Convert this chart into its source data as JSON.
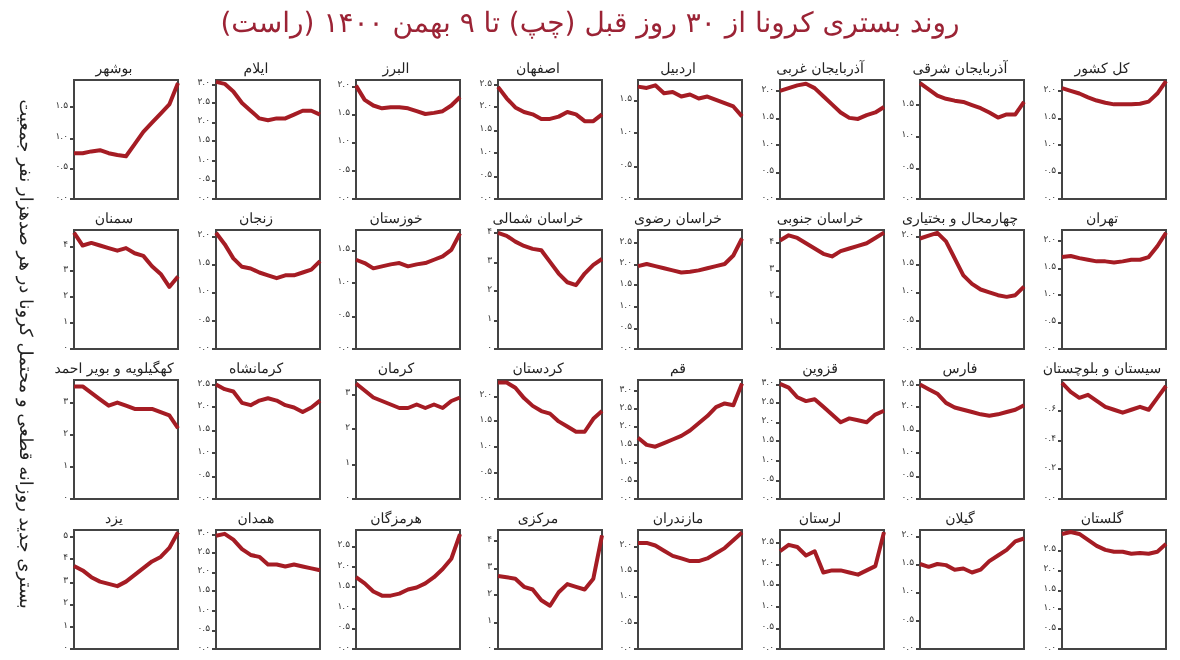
{
  "chart_data": [
    {
      "type": "other",
      "title": "روند بستری کرونا از ۳۰ روز قبل (چپ) تا ۹ بهمن ۱۴۰۰ (راست)",
      "annotations": [
        "بستری جدید روزانه قطعی و محتمل کرونا در هر صدهزار نفر جمعیت"
      ]
    },
    {
      "type": "line",
      "title": "کل کشور",
      "categories": [
        null,
        null,
        null,
        null,
        null,
        null,
        null,
        null,
        null,
        null,
        null,
        null,
        null
      ],
      "values": [
        2.05,
        2.0,
        1.95,
        1.88,
        1.82,
        1.78,
        1.75,
        1.75,
        1.75,
        1.76,
        1.8,
        1.95,
        2.18
      ],
      "color": "#a51c24",
      "tick_labels": "y",
      "ylim": [
        0,
        2.2
      ],
      "yticks": [
        {
          "value": 0,
          "label": "۰.۰"
        },
        {
          "value": 0.5,
          "label": "۰.۵"
        },
        {
          "value": 1,
          "label": "۱.۰"
        },
        {
          "value": 1.5,
          "label": "۱.۵"
        },
        {
          "value": 2,
          "label": "۲.۰"
        }
      ]
    },
    {
      "type": "line",
      "title": "آذربایجان شرقی",
      "categories": [
        null,
        null,
        null,
        null,
        null,
        null,
        null,
        null,
        null,
        null,
        null,
        null,
        null
      ],
      "values": [
        1.85,
        1.75,
        1.65,
        1.6,
        1.57,
        1.55,
        1.5,
        1.45,
        1.38,
        1.3,
        1.35,
        1.35,
        1.55
      ],
      "color": "#a51c24",
      "tick_labels": "y",
      "ylim": [
        0,
        1.9
      ],
      "yticks": [
        {
          "value": 0,
          "label": "۰.۰"
        },
        {
          "value": 0.5,
          "label": "۰.۵"
        },
        {
          "value": 1,
          "label": "۱.۰"
        },
        {
          "value": 1.5,
          "label": "۱.۵"
        }
      ]
    },
    {
      "type": "line",
      "title": "آذربایجان غربی",
      "categories": [
        null,
        null,
        null,
        null,
        null,
        null,
        null,
        null,
        null,
        null,
        null,
        null,
        null
      ],
      "values": [
        2.0,
        2.05,
        2.1,
        2.13,
        2.05,
        1.9,
        1.75,
        1.6,
        1.5,
        1.48,
        1.55,
        1.6,
        1.7
      ],
      "color": "#a51c24",
      "tick_labels": "y",
      "ylim": [
        0,
        2.2
      ],
      "yticks": [
        {
          "value": 0,
          "label": "۰.۰"
        },
        {
          "value": 0.5,
          "label": "۰.۵"
        },
        {
          "value": 1,
          "label": "۱.۰"
        },
        {
          "value": 1.5,
          "label": "۱.۵"
        },
        {
          "value": 2,
          "label": "۲.۰"
        }
      ]
    },
    {
      "type": "line",
      "title": "اردبیل",
      "categories": [
        null,
        null,
        null,
        null,
        null,
        null,
        null,
        null,
        null,
        null,
        null,
        null,
        null
      ],
      "values": [
        1.7,
        1.68,
        1.72,
        1.6,
        1.62,
        1.55,
        1.58,
        1.52,
        1.55,
        1.5,
        1.45,
        1.4,
        1.25
      ],
      "color": "#a51c24",
      "tick_labels": "y",
      "ylim": [
        0,
        1.8
      ],
      "yticks": [
        {
          "value": 0,
          "label": "۰.۰"
        },
        {
          "value": 0.5,
          "label": "۰.۵"
        },
        {
          "value": 1,
          "label": "۱.۰"
        },
        {
          "value": 1.5,
          "label": "۱.۵"
        }
      ]
    },
    {
      "type": "line",
      "title": "اصفهان",
      "categories": [
        null,
        null,
        null,
        null,
        null,
        null,
        null,
        null,
        null,
        null,
        null,
        null,
        null
      ],
      "values": [
        2.45,
        2.2,
        2.0,
        1.9,
        1.85,
        1.75,
        1.75,
        1.8,
        1.9,
        1.85,
        1.7,
        1.7,
        1.85
      ],
      "color": "#a51c24",
      "tick_labels": "y",
      "ylim": [
        0,
        2.6
      ],
      "yticks": [
        {
          "value": 0,
          "label": "۰.۰"
        },
        {
          "value": 0.5,
          "label": "۰.۵"
        },
        {
          "value": 1,
          "label": "۱.۰"
        },
        {
          "value": 1.5,
          "label": "۱.۵"
        },
        {
          "value": 2,
          "label": "۲.۰"
        },
        {
          "value": 2.5,
          "label": "۲.۵"
        }
      ]
    },
    {
      "type": "line",
      "title": "البرز",
      "categories": [
        null,
        null,
        null,
        null,
        null,
        null,
        null,
        null,
        null,
        null,
        null,
        null,
        null
      ],
      "values": [
        2.0,
        1.75,
        1.65,
        1.6,
        1.62,
        1.62,
        1.6,
        1.55,
        1.5,
        1.52,
        1.55,
        1.65,
        1.8
      ],
      "color": "#a51c24",
      "tick_labels": "y",
      "ylim": [
        0,
        2.1
      ],
      "yticks": [
        {
          "value": 0,
          "label": "۰.۰"
        },
        {
          "value": 0.5,
          "label": "۰.۵"
        },
        {
          "value": 1,
          "label": "۱.۰"
        },
        {
          "value": 1.5,
          "label": "۱.۵"
        },
        {
          "value": 2,
          "label": "۲.۰"
        }
      ]
    },
    {
      "type": "line",
      "title": "ایلام",
      "categories": [
        null,
        null,
        null,
        null,
        null,
        null,
        null,
        null,
        null,
        null,
        null,
        null,
        null
      ],
      "values": [
        3.05,
        3.0,
        2.8,
        2.5,
        2.3,
        2.1,
        2.05,
        2.1,
        2.1,
        2.2,
        2.3,
        2.3,
        2.2
      ],
      "color": "#a51c24",
      "tick_labels": "y",
      "ylim": [
        0,
        3.1
      ],
      "yticks": [
        {
          "value": 0,
          "label": "۰.۰"
        },
        {
          "value": 0.5,
          "label": "۰.۵"
        },
        {
          "value": 1,
          "label": "۱.۰"
        },
        {
          "value": 1.5,
          "label": "۱.۵"
        },
        {
          "value": 2,
          "label": "۲.۰"
        },
        {
          "value": 2.5,
          "label": "۲.۵"
        },
        {
          "value": 3,
          "label": "۳.۰"
        }
      ]
    },
    {
      "type": "line",
      "title": "بوشهر",
      "categories": [
        null,
        null,
        null,
        null,
        null,
        null,
        null,
        null,
        null,
        null,
        null,
        null,
        null
      ],
      "values": [
        0.75,
        0.75,
        0.78,
        0.8,
        0.75,
        0.72,
        0.7,
        0.9,
        1.1,
        1.25,
        1.4,
        1.55,
        1.9
      ],
      "color": "#a51c24",
      "tick_labels": "y",
      "ylim": [
        0,
        1.95
      ],
      "yticks": [
        {
          "value": 0,
          "label": "۰.۰"
        },
        {
          "value": 0.5,
          "label": "۰.۵"
        },
        {
          "value": 1,
          "label": "۱.۰"
        },
        {
          "value": 1.5,
          "label": "۱.۵"
        }
      ]
    },
    {
      "type": "line",
      "title": "تهران",
      "categories": [
        null,
        null,
        null,
        null,
        null,
        null,
        null,
        null,
        null,
        null,
        null,
        null,
        null
      ],
      "values": [
        1.7,
        1.72,
        1.68,
        1.65,
        1.62,
        1.62,
        1.6,
        1.62,
        1.65,
        1.65,
        1.7,
        1.9,
        2.15
      ],
      "color": "#a51c24",
      "tick_labels": "y",
      "ylim": [
        0,
        2.2
      ],
      "yticks": [
        {
          "value": 0,
          "label": "۰.۰"
        },
        {
          "value": 0.5,
          "label": "۰.۵"
        },
        {
          "value": 1,
          "label": "۱.۰"
        },
        {
          "value": 1.5,
          "label": "۱.۵"
        },
        {
          "value": 2,
          "label": "۲.۰"
        }
      ]
    },
    {
      "type": "line",
      "title": "چهارمحال و بختیاری",
      "categories": [
        null,
        null,
        null,
        null,
        null,
        null,
        null,
        null,
        null,
        null,
        null,
        null,
        null
      ],
      "values": [
        1.95,
        2.0,
        2.05,
        1.9,
        1.6,
        1.3,
        1.15,
        1.05,
        1.0,
        0.95,
        0.92,
        0.95,
        1.1
      ],
      "color": "#a51c24",
      "tick_labels": "y",
      "ylim": [
        0,
        2.1
      ],
      "yticks": [
        {
          "value": 0,
          "label": "۰.۰"
        },
        {
          "value": 0.5,
          "label": "۰.۵"
        },
        {
          "value": 1,
          "label": "۱.۰"
        },
        {
          "value": 1.5,
          "label": "۱.۵"
        },
        {
          "value": 2,
          "label": "۲.۰"
        }
      ]
    },
    {
      "type": "line",
      "title": "خراسان جنوبی",
      "categories": [
        null,
        null,
        null,
        null,
        null,
        null,
        null,
        null,
        null,
        null,
        null,
        null,
        null
      ],
      "values": [
        4.1,
        4.3,
        4.2,
        4.0,
        3.8,
        3.6,
        3.5,
        3.7,
        3.8,
        3.9,
        4.0,
        4.2,
        4.4
      ],
      "color": "#a51c24",
      "tick_labels": "y",
      "ylim": [
        0,
        4.5
      ],
      "yticks": [
        {
          "value": 0,
          "label": "۰"
        },
        {
          "value": 1,
          "label": "۱"
        },
        {
          "value": 2,
          "label": "۲"
        },
        {
          "value": 3,
          "label": "۳"
        },
        {
          "value": 4,
          "label": "۴"
        }
      ]
    },
    {
      "type": "line",
      "title": "خراسان رضوی",
      "categories": [
        null,
        null,
        null,
        null,
        null,
        null,
        null,
        null,
        null,
        null,
        null,
        null,
        null
      ],
      "values": [
        1.95,
        2.0,
        1.95,
        1.9,
        1.85,
        1.8,
        1.82,
        1.85,
        1.9,
        1.95,
        2.0,
        2.2,
        2.6
      ],
      "color": "#a51c24",
      "tick_labels": "y",
      "ylim": [
        0,
        2.8
      ],
      "yticks": [
        {
          "value": 0,
          "label": "۰.۰"
        },
        {
          "value": 0.5,
          "label": "۰.۵"
        },
        {
          "value": 1,
          "label": "۱.۰"
        },
        {
          "value": 1.5,
          "label": "۱.۵"
        },
        {
          "value": 2,
          "label": "۲.۰"
        },
        {
          "value": 2.5,
          "label": "۲.۵"
        }
      ]
    },
    {
      "type": "line",
      "title": "خراسان شمالی",
      "categories": [
        null,
        null,
        null,
        null,
        null,
        null,
        null,
        null,
        null,
        null,
        null,
        null,
        null
      ],
      "values": [
        4.0,
        3.9,
        3.7,
        3.55,
        3.45,
        3.4,
        3.0,
        2.6,
        2.3,
        2.2,
        2.6,
        2.9,
        3.1
      ],
      "color": "#a51c24",
      "tick_labels": "y",
      "ylim": [
        0,
        4.1
      ],
      "yticks": [
        {
          "value": 0,
          "label": "۰"
        },
        {
          "value": 1,
          "label": "۱"
        },
        {
          "value": 2,
          "label": "۲"
        },
        {
          "value": 3,
          "label": "۳"
        },
        {
          "value": 4,
          "label": "۴"
        }
      ]
    },
    {
      "type": "line",
      "title": "خوزستان",
      "categories": [
        null,
        null,
        null,
        null,
        null,
        null,
        null,
        null,
        null,
        null,
        null,
        null,
        null
      ],
      "values": [
        1.35,
        1.3,
        1.22,
        1.25,
        1.28,
        1.3,
        1.25,
        1.28,
        1.3,
        1.35,
        1.4,
        1.5,
        1.75
      ],
      "color": "#a51c24",
      "tick_labels": "y",
      "ylim": [
        0,
        1.8
      ],
      "yticks": [
        {
          "value": 0,
          "label": "۰.۰"
        },
        {
          "value": 0.5,
          "label": "۰.۵"
        },
        {
          "value": 1,
          "label": "۱.۰"
        },
        {
          "value": 1.5,
          "label": "۱.۵"
        }
      ]
    },
    {
      "type": "line",
      "title": "زنجان",
      "categories": [
        null,
        null,
        null,
        null,
        null,
        null,
        null,
        null,
        null,
        null,
        null,
        null,
        null
      ],
      "values": [
        2.05,
        1.85,
        1.6,
        1.45,
        1.42,
        1.35,
        1.3,
        1.25,
        1.3,
        1.3,
        1.35,
        1.4,
        1.55
      ],
      "color": "#a51c24",
      "tick_labels": "y",
      "ylim": [
        0,
        2.1
      ],
      "yticks": [
        {
          "value": 0,
          "label": "۰.۰"
        },
        {
          "value": 0.5,
          "label": "۰.۵"
        },
        {
          "value": 1,
          "label": "۱.۰"
        },
        {
          "value": 1.5,
          "label": "۱.۵"
        },
        {
          "value": 2,
          "label": "۲.۰"
        }
      ]
    },
    {
      "type": "line",
      "title": "سمنان",
      "categories": [
        null,
        null,
        null,
        null,
        null,
        null,
        null,
        null,
        null,
        null,
        null,
        null,
        null
      ],
      "values": [
        4.5,
        4.0,
        4.1,
        4.0,
        3.9,
        3.8,
        3.9,
        3.7,
        3.6,
        3.2,
        2.9,
        2.4,
        2.8
      ],
      "color": "#a51c24",
      "tick_labels": "y",
      "ylim": [
        0,
        4.6
      ],
      "yticks": [
        {
          "value": 0,
          "label": "۰"
        },
        {
          "value": 1,
          "label": "۱"
        },
        {
          "value": 2,
          "label": "۲"
        },
        {
          "value": 3,
          "label": "۳"
        },
        {
          "value": 4,
          "label": "۴"
        }
      ]
    },
    {
      "type": "line",
      "title": "سیستان و بلوچستان",
      "categories": [
        null,
        null,
        null,
        null,
        null,
        null,
        null,
        null,
        null,
        null,
        null,
        null,
        null
      ],
      "values": [
        0.78,
        0.72,
        0.68,
        0.7,
        0.66,
        0.62,
        0.6,
        0.58,
        0.6,
        0.62,
        0.6,
        0.68,
        0.76
      ],
      "color": "#a51c24",
      "tick_labels": "y",
      "ylim": [
        0,
        0.8
      ],
      "yticks": [
        {
          "value": 0,
          "label": "۰.۰"
        },
        {
          "value": 0.2,
          "label": "۰.۲"
        },
        {
          "value": 0.4,
          "label": "۰.۴"
        },
        {
          "value": 0.6,
          "label": "۰.۶"
        }
      ]
    },
    {
      "type": "line",
      "title": "فارس",
      "categories": [
        null,
        null,
        null,
        null,
        null,
        null,
        null,
        null,
        null,
        null,
        null,
        null,
        null
      ],
      "values": [
        2.5,
        2.4,
        2.3,
        2.1,
        2.0,
        1.95,
        1.9,
        1.85,
        1.82,
        1.85,
        1.9,
        1.95,
        2.05
      ],
      "color": "#a51c24",
      "tick_labels": "y",
      "ylim": [
        0,
        2.6
      ],
      "yticks": [
        {
          "value": 0,
          "label": "۰.۰"
        },
        {
          "value": 0.5,
          "label": "۰.۵"
        },
        {
          "value": 1,
          "label": "۱.۰"
        },
        {
          "value": 1.5,
          "label": "۱.۵"
        },
        {
          "value": 2,
          "label": "۲.۰"
        },
        {
          "value": 2.5,
          "label": "۲.۵"
        }
      ]
    },
    {
      "type": "line",
      "title": "قزوین",
      "categories": [
        null,
        null,
        null,
        null,
        null,
        null,
        null,
        null,
        null,
        null,
        null,
        null,
        null
      ],
      "values": [
        3.0,
        2.9,
        2.65,
        2.55,
        2.6,
        2.4,
        2.2,
        2.0,
        2.1,
        2.05,
        2.0,
        2.2,
        2.3
      ],
      "color": "#a51c24",
      "tick_labels": "y",
      "ylim": [
        0,
        3.1
      ],
      "yticks": [
        {
          "value": 0,
          "label": "۰.۰"
        },
        {
          "value": 0.5,
          "label": "۰.۵"
        },
        {
          "value": 1,
          "label": "۱.۰"
        },
        {
          "value": 1.5,
          "label": "۱.۵"
        },
        {
          "value": 2,
          "label": "۲.۰"
        },
        {
          "value": 2.5,
          "label": "۲.۵"
        },
        {
          "value": 3,
          "label": "۳.۰"
        }
      ]
    },
    {
      "type": "line",
      "title": "قم",
      "categories": [
        null,
        null,
        null,
        null,
        null,
        null,
        null,
        null,
        null,
        null,
        null,
        null,
        null
      ],
      "values": [
        1.7,
        1.5,
        1.45,
        1.55,
        1.65,
        1.75,
        1.9,
        2.1,
        2.3,
        2.55,
        2.65,
        2.6,
        3.2
      ],
      "color": "#a51c24",
      "tick_labels": "y",
      "ylim": [
        0,
        3.3
      ],
      "yticks": [
        {
          "value": 0,
          "label": "۰.۰"
        },
        {
          "value": 0.5,
          "label": "۰.۵"
        },
        {
          "value": 1,
          "label": "۱.۰"
        },
        {
          "value": 1.5,
          "label": "۱.۵"
        },
        {
          "value": 2,
          "label": "۲.۰"
        },
        {
          "value": 2.5,
          "label": "۲.۵"
        },
        {
          "value": 3,
          "label": "۳.۰"
        }
      ]
    },
    {
      "type": "line",
      "title": "کردستان",
      "categories": [
        null,
        null,
        null,
        null,
        null,
        null,
        null,
        null,
        null,
        null,
        null,
        null,
        null
      ],
      "values": [
        2.25,
        2.25,
        2.15,
        1.95,
        1.8,
        1.7,
        1.65,
        1.5,
        1.4,
        1.3,
        1.3,
        1.55,
        1.7
      ],
      "color": "#a51c24",
      "tick_labels": "y",
      "ylim": [
        0,
        2.3
      ],
      "yticks": [
        {
          "value": 0,
          "label": "۰.۰"
        },
        {
          "value": 0.5,
          "label": "۰.۵"
        },
        {
          "value": 1,
          "label": "۱.۰"
        },
        {
          "value": 1.5,
          "label": "۱.۵"
        },
        {
          "value": 2,
          "label": "۲.۰"
        }
      ]
    },
    {
      "type": "line",
      "title": "کرمان",
      "categories": [
        null,
        null,
        null,
        null,
        null,
        null,
        null,
        null,
        null,
        null,
        null,
        null,
        null
      ],
      "values": [
        3.3,
        3.1,
        2.9,
        2.8,
        2.7,
        2.6,
        2.6,
        2.7,
        2.6,
        2.7,
        2.6,
        2.8,
        2.9
      ],
      "color": "#a51c24",
      "tick_labels": "y",
      "ylim": [
        0,
        3.4
      ],
      "yticks": [
        {
          "value": 0,
          "label": "۰"
        },
        {
          "value": 1,
          "label": "۱"
        },
        {
          "value": 2,
          "label": "۲"
        },
        {
          "value": 3,
          "label": "۳"
        }
      ]
    },
    {
      "type": "line",
      "title": "کرمانشاه",
      "categories": [
        null,
        null,
        null,
        null,
        null,
        null,
        null,
        null,
        null,
        null,
        null,
        null,
        null
      ],
      "values": [
        2.5,
        2.4,
        2.35,
        2.1,
        2.05,
        2.15,
        2.2,
        2.15,
        2.05,
        2.0,
        1.9,
        2.0,
        2.15
      ],
      "color": "#a51c24",
      "tick_labels": "y",
      "ylim": [
        0,
        2.6
      ],
      "yticks": [
        {
          "value": 0,
          "label": "۰.۰"
        },
        {
          "value": 0.5,
          "label": "۰.۵"
        },
        {
          "value": 1,
          "label": "۱.۰"
        },
        {
          "value": 1.5,
          "label": "۱.۵"
        },
        {
          "value": 2,
          "label": "۲.۰"
        },
        {
          "value": 2.5,
          "label": "۲.۵"
        }
      ]
    },
    {
      "type": "line",
      "title": "کهگیلویه و بویر احمد",
      "categories": [
        null,
        null,
        null,
        null,
        null,
        null,
        null,
        null,
        null,
        null,
        null,
        null,
        null
      ],
      "values": [
        3.5,
        3.5,
        3.3,
        3.1,
        2.9,
        3.0,
        2.9,
        2.8,
        2.8,
        2.8,
        2.7,
        2.6,
        2.2
      ],
      "color": "#a51c24",
      "tick_labels": "y",
      "ylim": [
        0,
        3.7
      ],
      "yticks": [
        {
          "value": 0,
          "label": "۰"
        },
        {
          "value": 1,
          "label": "۱"
        },
        {
          "value": 2,
          "label": "۲"
        },
        {
          "value": 3,
          "label": "۳"
        }
      ]
    },
    {
      "type": "line",
      "title": "گلستان",
      "categories": [
        null,
        null,
        null,
        null,
        null,
        null,
        null,
        null,
        null,
        null,
        null,
        null,
        null
      ],
      "values": [
        2.9,
        2.95,
        2.9,
        2.75,
        2.6,
        2.5,
        2.45,
        2.45,
        2.4,
        2.42,
        2.4,
        2.45,
        2.65
      ],
      "color": "#a51c24",
      "tick_labels": "y",
      "ylim": [
        0,
        3.0
      ],
      "yticks": [
        {
          "value": 0,
          "label": "۰.۰"
        },
        {
          "value": 0.5,
          "label": "۰.۵"
        },
        {
          "value": 1,
          "label": "۱.۰"
        },
        {
          "value": 1.5,
          "label": "۱.۵"
        },
        {
          "value": 2,
          "label": "۲.۰"
        },
        {
          "value": 2.5,
          "label": "۲.۵"
        }
      ]
    },
    {
      "type": "line",
      "title": "گیلان",
      "categories": [
        null,
        null,
        null,
        null,
        null,
        null,
        null,
        null,
        null,
        null,
        null,
        null,
        null
      ],
      "values": [
        1.5,
        1.45,
        1.5,
        1.48,
        1.4,
        1.42,
        1.35,
        1.4,
        1.55,
        1.65,
        1.75,
        1.9,
        1.95
      ],
      "color": "#a51c24",
      "tick_labels": "y",
      "ylim": [
        0,
        2.1
      ],
      "yticks": [
        {
          "value": 0,
          "label": "۰.۰"
        },
        {
          "value": 0.5,
          "label": "۰.۵"
        },
        {
          "value": 1,
          "label": "۱.۰"
        },
        {
          "value": 1.5,
          "label": "۱.۵"
        },
        {
          "value": 2,
          "label": "۲.۰"
        }
      ]
    },
    {
      "type": "line",
      "title": "لرستان",
      "categories": [
        null,
        null,
        null,
        null,
        null,
        null,
        null,
        null,
        null,
        null,
        null,
        null,
        null
      ],
      "values": [
        2.3,
        2.45,
        2.4,
        2.2,
        2.3,
        1.8,
        1.85,
        1.85,
        1.8,
        1.75,
        1.85,
        1.95,
        2.75
      ],
      "color": "#a51c24",
      "tick_labels": "y",
      "ylim": [
        0,
        2.8
      ],
      "yticks": [
        {
          "value": 0,
          "label": "۰.۰"
        },
        {
          "value": 0.5,
          "label": "۰.۵"
        },
        {
          "value": 1,
          "label": "۱.۰"
        },
        {
          "value": 1.5,
          "label": "۱.۵"
        },
        {
          "value": 2,
          "label": "۲.۰"
        },
        {
          "value": 2.5,
          "label": "۲.۵"
        }
      ]
    },
    {
      "type": "line",
      "title": "مازندران",
      "categories": [
        null,
        null,
        null,
        null,
        null,
        null,
        null,
        null,
        null,
        null,
        null,
        null,
        null
      ],
      "values": [
        2.05,
        2.05,
        2.0,
        1.9,
        1.8,
        1.75,
        1.7,
        1.7,
        1.75,
        1.85,
        1.95,
        2.1,
        2.25
      ],
      "color": "#a51c24",
      "tick_labels": "y",
      "ylim": [
        0,
        2.3
      ],
      "yticks": [
        {
          "value": 0,
          "label": "۰.۰"
        },
        {
          "value": 0.5,
          "label": "۰.۵"
        },
        {
          "value": 1,
          "label": "۱.۰"
        },
        {
          "value": 1.5,
          "label": "۱.۵"
        },
        {
          "value": 2,
          "label": "۲.۰"
        }
      ]
    },
    {
      "type": "line",
      "title": "مرکزی",
      "categories": [
        null,
        null,
        null,
        null,
        null,
        null,
        null,
        null,
        null,
        null,
        null,
        null,
        null
      ],
      "values": [
        2.7,
        2.65,
        2.6,
        2.3,
        2.2,
        1.8,
        1.6,
        2.1,
        2.4,
        2.3,
        2.2,
        2.6,
        4.2
      ],
      "color": "#a51c24",
      "tick_labels": "y",
      "ylim": [
        0,
        4.4
      ],
      "yticks": [
        {
          "value": 0,
          "label": "۰"
        },
        {
          "value": 1,
          "label": "۱"
        },
        {
          "value": 2,
          "label": "۲"
        },
        {
          "value": 3,
          "label": "۳"
        },
        {
          "value": 4,
          "label": "۴"
        }
      ]
    },
    {
      "type": "line",
      "title": "هرمزگان",
      "categories": [
        null,
        null,
        null,
        null,
        null,
        null,
        null,
        null,
        null,
        null,
        null,
        null,
        null
      ],
      "values": [
        1.75,
        1.6,
        1.4,
        1.3,
        1.3,
        1.35,
        1.45,
        1.5,
        1.6,
        1.75,
        1.95,
        2.2,
        2.8
      ],
      "color": "#a51c24",
      "tick_labels": "y",
      "ylim": [
        0,
        2.9
      ],
      "yticks": [
        {
          "value": 0,
          "label": "۰.۰"
        },
        {
          "value": 0.5,
          "label": "۰.۵"
        },
        {
          "value": 1,
          "label": "۱.۰"
        },
        {
          "value": 1.5,
          "label": "۱.۵"
        },
        {
          "value": 2,
          "label": "۲.۰"
        },
        {
          "value": 2.5,
          "label": "۲.۵"
        }
      ]
    },
    {
      "type": "line",
      "title": "همدان",
      "categories": [
        null,
        null,
        null,
        null,
        null,
        null,
        null,
        null,
        null,
        null,
        null,
        null,
        null
      ],
      "values": [
        2.95,
        3.0,
        2.85,
        2.6,
        2.45,
        2.4,
        2.2,
        2.2,
        2.15,
        2.2,
        2.15,
        2.1,
        2.05
      ],
      "color": "#a51c24",
      "tick_labels": "y",
      "ylim": [
        0,
        3.1
      ],
      "yticks": [
        {
          "value": 0,
          "label": "۰.۰"
        },
        {
          "value": 0.5,
          "label": "۰.۵"
        },
        {
          "value": 1,
          "label": "۱.۰"
        },
        {
          "value": 1.5,
          "label": "۱.۵"
        },
        {
          "value": 2,
          "label": "۲.۰"
        },
        {
          "value": 2.5,
          "label": "۲.۵"
        },
        {
          "value": 3,
          "label": "۳.۰"
        }
      ]
    },
    {
      "type": "line",
      "title": "یزد",
      "categories": [
        null,
        null,
        null,
        null,
        null,
        null,
        null,
        null,
        null,
        null,
        null,
        null,
        null
      ],
      "values": [
        3.7,
        3.5,
        3.2,
        3.0,
        2.9,
        2.8,
        3.0,
        3.3,
        3.6,
        3.9,
        4.1,
        4.5,
        5.2
      ],
      "color": "#a51c24",
      "tick_labels": "y",
      "ylim": [
        0,
        5.3
      ],
      "yticks": [
        {
          "value": 0,
          "label": "۰"
        },
        {
          "value": 1,
          "label": "۱"
        },
        {
          "value": 2,
          "label": "۲"
        },
        {
          "value": 3,
          "label": "۳"
        },
        {
          "value": 4,
          "label": "۴"
        },
        {
          "value": 5,
          "label": "۵"
        }
      ]
    }
  ]
}
